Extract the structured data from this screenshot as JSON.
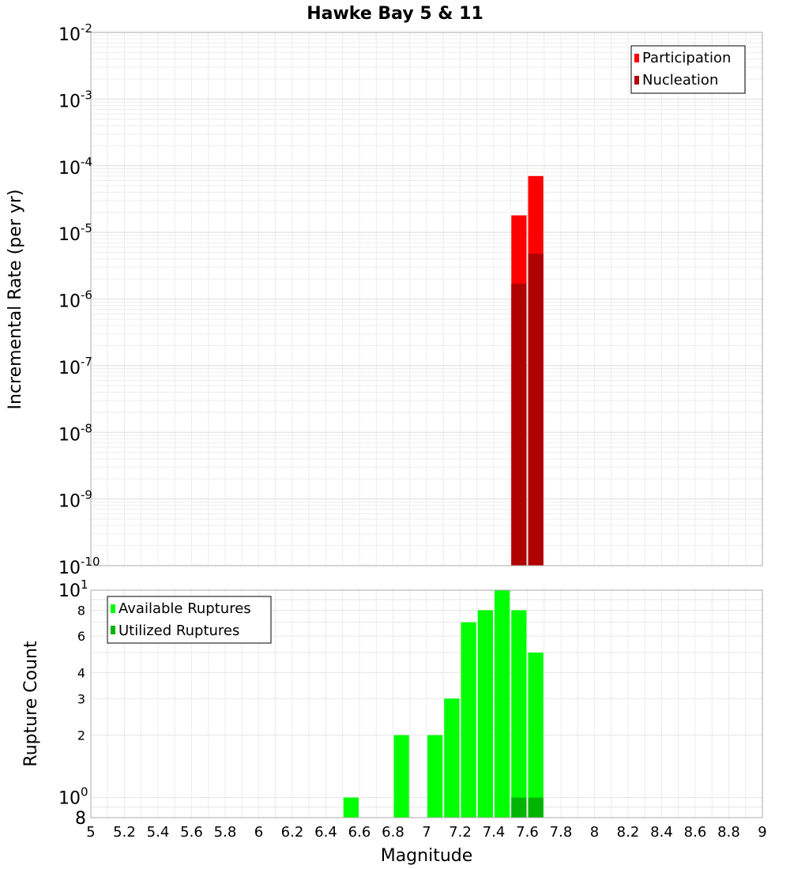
{
  "chart_data": [
    {
      "type": "bar",
      "title": "Hawke Bay 5 & 11",
      "xlabel": "",
      "ylabel": "Incremental Rate (per yr)",
      "yscale": "log",
      "ylim": [
        1e-10,
        0.01
      ],
      "xlim": [
        5,
        9
      ],
      "y_tick_labels": [
        {
          "base": "10",
          "exp": "-10"
        },
        {
          "base": "10",
          "exp": "-9"
        },
        {
          "base": "10",
          "exp": "-8"
        },
        {
          "base": "10",
          "exp": "-7"
        },
        {
          "base": "10",
          "exp": "-6"
        },
        {
          "base": "10",
          "exp": "-5"
        },
        {
          "base": "10",
          "exp": "-4"
        },
        {
          "base": "10",
          "exp": "-3"
        },
        {
          "base": "10",
          "exp": "-2"
        }
      ],
      "legend": {
        "position": "top-right"
      },
      "series": [
        {
          "name": "Participation",
          "color": "#ff0000",
          "x": [
            7.55,
            7.65
          ],
          "values": [
            1.8e-05,
            7e-05
          ]
        },
        {
          "name": "Nucleation",
          "color": "#b00000",
          "x": [
            7.55,
            7.65
          ],
          "values": [
            1.7e-06,
            4.8e-06
          ]
        }
      ]
    },
    {
      "type": "bar",
      "title": "",
      "xlabel": "Magnitude",
      "ylabel": "Rupture Count",
      "yscale": "log",
      "ylim": [
        0.8,
        10
      ],
      "xlim": [
        5,
        9
      ],
      "x_ticks": [
        "5",
        "5.2",
        "5.4",
        "5.6",
        "5.8",
        "6",
        "6.2",
        "6.4",
        "6.6",
        "6.8",
        "7",
        "7.2",
        "7.4",
        "7.6",
        "7.8",
        "8",
        "8.2",
        "8.4",
        "8.6",
        "8.8",
        "9"
      ],
      "y_ticks": [
        "2",
        "3",
        "4",
        "6",
        "8"
      ],
      "y_tick_labels": [
        {
          "base": "8",
          "exp": ""
        },
        {
          "base": "10",
          "exp": "0"
        },
        {
          "base": "10",
          "exp": "1"
        }
      ],
      "legend": {
        "position": "top-left"
      },
      "series": [
        {
          "name": "Available Ruptures",
          "color": "#00ff00",
          "x": [
            6.55,
            6.85,
            7.05,
            7.15,
            7.25,
            7.35,
            7.45,
            7.55,
            7.65
          ],
          "values": [
            1,
            2,
            2,
            3,
            7,
            8,
            10,
            8,
            5
          ]
        },
        {
          "name": "Utilized Ruptures",
          "color": "#00b400",
          "x": [
            7.55,
            7.65
          ],
          "values": [
            1,
            1
          ]
        }
      ]
    }
  ]
}
